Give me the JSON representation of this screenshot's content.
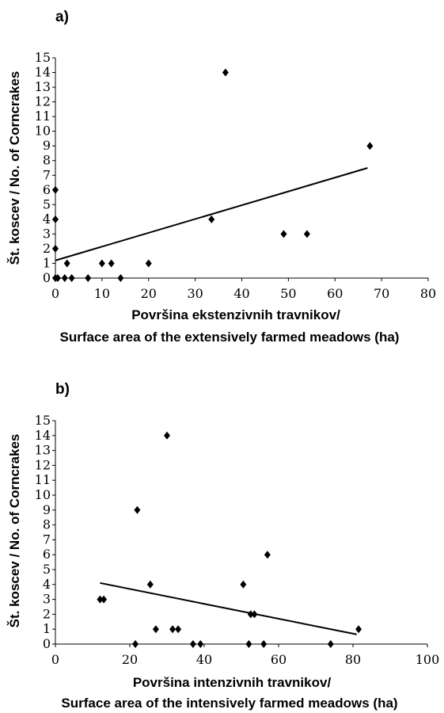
{
  "chart_data": [
    {
      "type": "scatter",
      "panel_label": "a)",
      "xlabel": [
        "Površina ekstenzivnih travnikov/",
        "Surface area of the extensively farmed meadows (ha)"
      ],
      "ylabel": "Št. koscev / No. of Corncrakes",
      "xlim": [
        0,
        80
      ],
      "ylim": [
        0,
        15
      ],
      "xticks": [
        0,
        10,
        20,
        30,
        40,
        50,
        60,
        70,
        80
      ],
      "yticks": [
        0,
        1,
        2,
        3,
        4,
        5,
        6,
        7,
        8,
        9,
        10,
        11,
        12,
        13,
        14,
        15
      ],
      "points": [
        {
          "x": 0,
          "y": 6
        },
        {
          "x": 0,
          "y": 4
        },
        {
          "x": 0,
          "y": 2
        },
        {
          "x": 0,
          "y": 0
        },
        {
          "x": 0.5,
          "y": 0
        },
        {
          "x": 2,
          "y": 0
        },
        {
          "x": 2.5,
          "y": 1
        },
        {
          "x": 3.5,
          "y": 0
        },
        {
          "x": 7,
          "y": 0
        },
        {
          "x": 10,
          "y": 1
        },
        {
          "x": 12,
          "y": 1
        },
        {
          "x": 14,
          "y": 0
        },
        {
          "x": 20,
          "y": 1
        },
        {
          "x": 33.5,
          "y": 4
        },
        {
          "x": 36.5,
          "y": 14
        },
        {
          "x": 49,
          "y": 3
        },
        {
          "x": 54,
          "y": 3
        },
        {
          "x": 67.5,
          "y": 9
        }
      ],
      "trendline": {
        "x": [
          0,
          67
        ],
        "y": [
          1.2,
          7.5
        ]
      }
    },
    {
      "type": "scatter",
      "panel_label": "b)",
      "xlabel": [
        "Površina intenzivnih travnikov/",
        "Surface area of the intensively farmed meadows (ha)"
      ],
      "ylabel": "Št. koscev / No. of Corncrakes",
      "xlim": [
        0,
        100
      ],
      "ylim": [
        0,
        15
      ],
      "xticks": [
        0,
        20,
        40,
        60,
        80,
        100
      ],
      "yticks": [
        0,
        1,
        2,
        3,
        4,
        5,
        6,
        7,
        8,
        9,
        10,
        11,
        12,
        13,
        14,
        15
      ],
      "points": [
        {
          "x": 12,
          "y": 3
        },
        {
          "x": 13,
          "y": 3
        },
        {
          "x": 21.5,
          "y": 0
        },
        {
          "x": 22,
          "y": 9
        },
        {
          "x": 25.5,
          "y": 4
        },
        {
          "x": 27,
          "y": 1
        },
        {
          "x": 30,
          "y": 14
        },
        {
          "x": 31.5,
          "y": 1
        },
        {
          "x": 33,
          "y": 1
        },
        {
          "x": 37,
          "y": 0
        },
        {
          "x": 39,
          "y": 0
        },
        {
          "x": 50.5,
          "y": 4
        },
        {
          "x": 52,
          "y": 0
        },
        {
          "x": 52.5,
          "y": 2
        },
        {
          "x": 53.5,
          "y": 2
        },
        {
          "x": 56,
          "y": 0
        },
        {
          "x": 57,
          "y": 6
        },
        {
          "x": 74,
          "y": 0
        },
        {
          "x": 81.5,
          "y": 1
        }
      ],
      "trendline": {
        "x": [
          12,
          81
        ],
        "y": [
          4.1,
          0.65
        ]
      }
    }
  ]
}
